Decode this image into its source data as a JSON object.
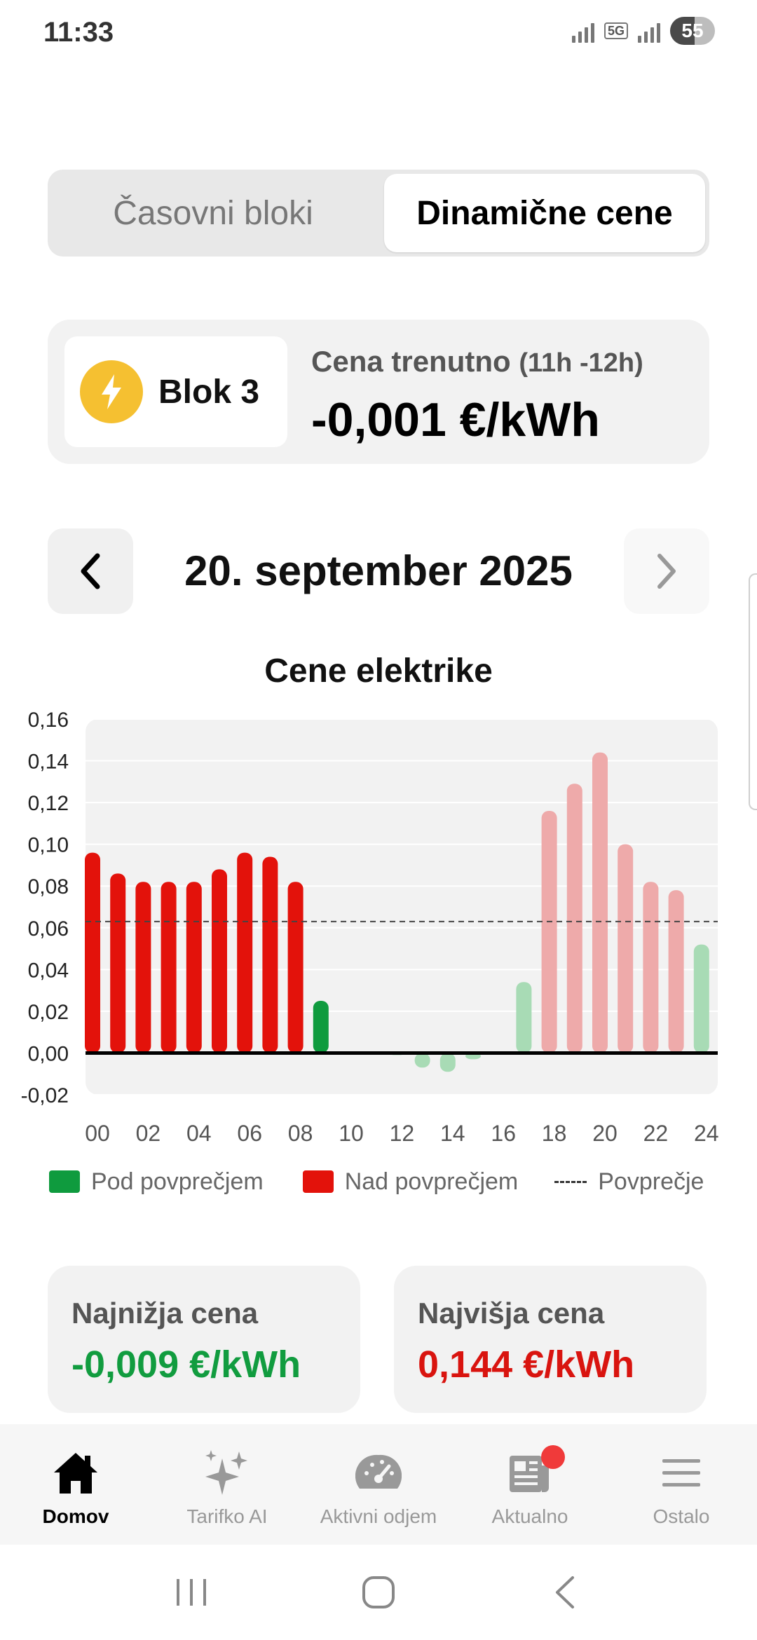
{
  "status_bar": {
    "time": "11:33",
    "network": "5G",
    "battery": "55",
    "battery_level": 0.55
  },
  "toggle": {
    "left_label": "Časovni bloki",
    "right_label": "Dinamične cene",
    "selected": "right"
  },
  "current_price": {
    "block_label": "Blok 3",
    "title": "Cena trenutno",
    "time_range": "(11h -12h)",
    "value": "-0,001 €/kWh"
  },
  "date_nav": {
    "date": "20. september 2025"
  },
  "chart": {
    "title": "Cene elektrike",
    "legend_below": "Pod povprečjem",
    "legend_above": "Nad povprečjem",
    "legend_avg": "Povprečje"
  },
  "chart_data": {
    "type": "bar",
    "title": "Cene elektrike",
    "hours": [
      0,
      1,
      2,
      3,
      4,
      5,
      6,
      7,
      8,
      9,
      10,
      11,
      12,
      13,
      14,
      15,
      16,
      17,
      18,
      19,
      20,
      21,
      22,
      23,
      24
    ],
    "values": [
      0.096,
      0.086,
      0.082,
      0.082,
      0.082,
      0.088,
      0.096,
      0.094,
      0.082,
      0.025,
      0.0,
      0.0,
      -0.001,
      -0.007,
      -0.009,
      -0.003,
      0.0,
      0.034,
      0.116,
      0.129,
      0.144,
      0.1,
      0.082,
      0.078,
      0.052
    ],
    "past_hours_count": 11,
    "average": 0.063,
    "ylim": [
      -0.02,
      0.16
    ],
    "yticks": [
      "0,16",
      "0,14",
      "0,12",
      "0,10",
      "0,08",
      "0,06",
      "0,04",
      "0,02",
      "0,00",
      "-0,02"
    ],
    "ytick_values": [
      0.16,
      0.14,
      0.12,
      0.1,
      0.08,
      0.06,
      0.04,
      0.02,
      0.0,
      -0.02
    ],
    "xticks": [
      "00",
      "02",
      "04",
      "06",
      "08",
      "10",
      "12",
      "14",
      "16",
      "18",
      "20",
      "22",
      "24"
    ],
    "colors": {
      "above_past": "#e3120b",
      "below_past": "#0f9b3e",
      "above_future": "#eeaaaa",
      "below_future": "#a8dbb5"
    },
    "grid": true,
    "legend_position": "bottom"
  },
  "stats": {
    "low_title": "Najnižja cena",
    "low_value": "-0,009 €/kWh",
    "high_title": "Najvišja cena",
    "high_value": "0,144 €/kWh",
    "low_color": "#119c3f",
    "high_color": "#d9140f"
  },
  "bottom_nav": {
    "tabs": [
      {
        "label": "Domov",
        "icon": "home-icon",
        "active": true
      },
      {
        "label": "Tarifko AI",
        "icon": "sparkles-icon",
        "active": false
      },
      {
        "label": "Aktivni odjem",
        "icon": "speedometer-icon",
        "active": false
      },
      {
        "label": "Aktualno",
        "icon": "news-icon",
        "active": false,
        "badge": true
      },
      {
        "label": "Ostalo",
        "icon": "menu-icon",
        "active": false
      }
    ]
  },
  "system_nav": {
    "icons": [
      "recents-icon",
      "home-circle-icon",
      "back-icon"
    ]
  }
}
